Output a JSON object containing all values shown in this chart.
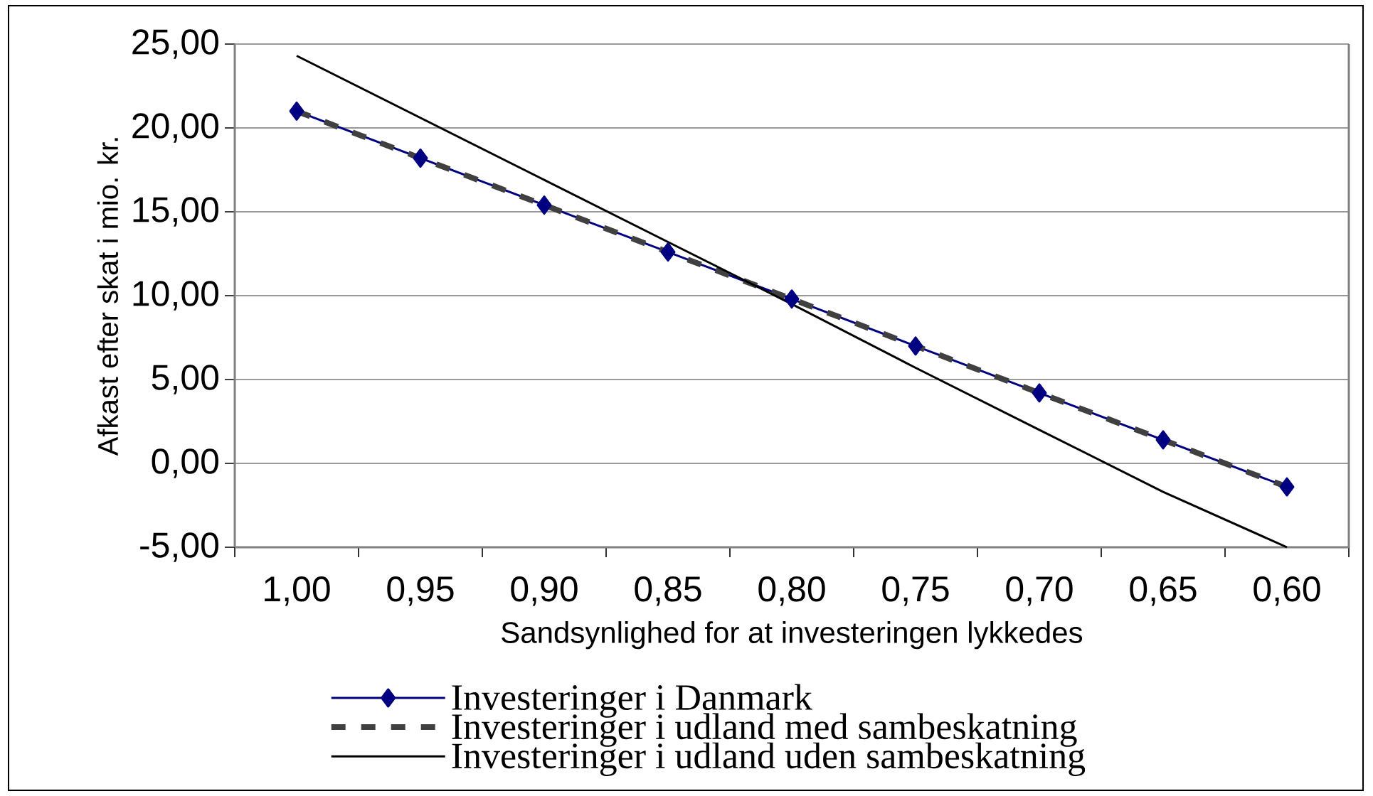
{
  "chart_data": {
    "type": "line",
    "xlabel": "Sandsynlighed for at investeringen lykkedes",
    "ylabel": "Afkast efter skat i mio. kr.",
    "categories": [
      "1,00",
      "0,95",
      "0,90",
      "0,85",
      "0,80",
      "0,75",
      "0,70",
      "0,65",
      "0,60"
    ],
    "ylim": [
      -5,
      25
    ],
    "yticks": [
      {
        "value": -5,
        "label": "-5,00"
      },
      {
        "value": 0,
        "label": "0,00"
      },
      {
        "value": 5,
        "label": "5,00"
      },
      {
        "value": 10,
        "label": "10,00"
      },
      {
        "value": 15,
        "label": "15,00"
      },
      {
        "value": 20,
        "label": "20,00"
      },
      {
        "value": 25,
        "label": "25,00"
      }
    ],
    "grid": "y",
    "legend": "bottom",
    "series": [
      {
        "name": "Investeringer i Danmark",
        "color": "#000080",
        "marker": "diamond",
        "line_style": "solid",
        "values": [
          21.0,
          18.2,
          15.4,
          12.6,
          9.8,
          7.0,
          4.2,
          1.4,
          -1.4
        ]
      },
      {
        "name": "Investeringer i udland med sambeskatning",
        "color": "#404040",
        "marker": "none",
        "line_style": "dashed",
        "values": [
          21.0,
          18.2,
          15.4,
          12.6,
          9.8,
          7.0,
          4.2,
          1.4,
          -1.4
        ]
      },
      {
        "name": "Investeringer i udland uden sambeskatning",
        "color": "#000000",
        "marker": "none",
        "line_style": "solid",
        "values": [
          24.3,
          20.6,
          16.9,
          13.2,
          9.5,
          5.7,
          2.0,
          -1.7,
          -5.0
        ]
      }
    ]
  }
}
